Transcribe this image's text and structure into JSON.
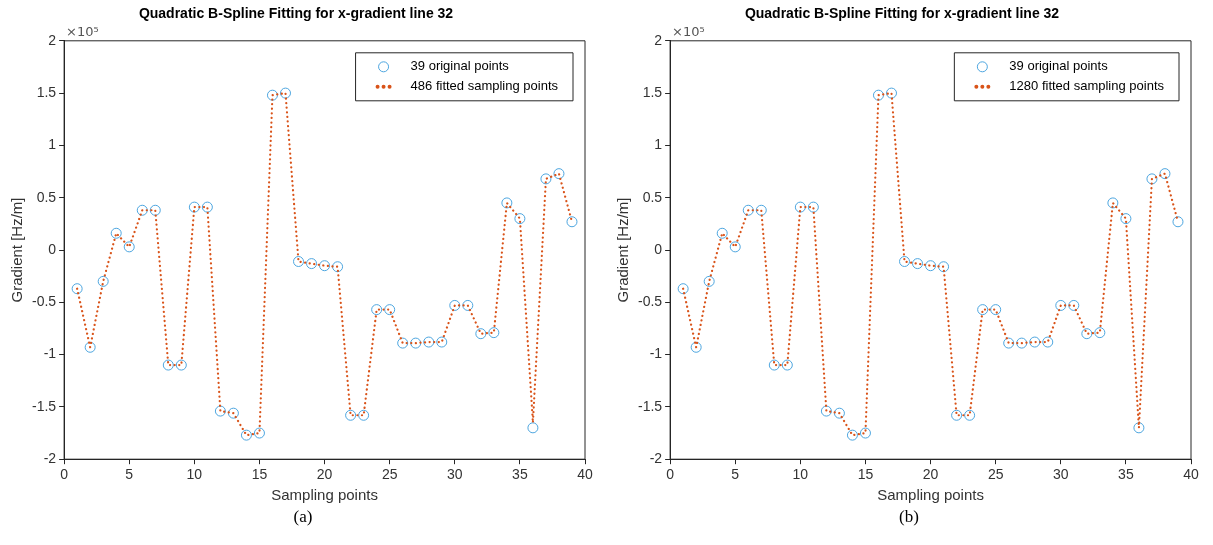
{
  "chart_data": [
    {
      "type": "scatter",
      "title": "Quadratic B-Spline Fitting for x-gradient line 32",
      "xlabel": "Sampling points",
      "ylabel": "Gradient [Hz/m]",
      "annotations": [
        "×10⁵",
        "(a)"
      ],
      "x": [
        1,
        2,
        3,
        4,
        5,
        6,
        7,
        8,
        9,
        10,
        11,
        12,
        13,
        14,
        15,
        16,
        17,
        18,
        19,
        20,
        21,
        22,
        23,
        24,
        25,
        26,
        27,
        28,
        29,
        30,
        31,
        32,
        33,
        34,
        35,
        36,
        37,
        38,
        39
      ],
      "series": [
        {
          "name": "39 original points",
          "type": "scatter",
          "marker": "circle",
          "color": "#4da6e0",
          "values": [
            -0.37,
            -0.93,
            -0.3,
            0.16,
            0.03,
            0.38,
            0.38,
            -1.1,
            -1.1,
            0.41,
            0.41,
            -1.54,
            -1.56,
            -1.77,
            -1.75,
            1.48,
            1.5,
            -0.11,
            -0.13,
            -0.15,
            -0.16,
            -1.58,
            -1.58,
            -0.57,
            -0.57,
            -0.89,
            -0.89,
            -0.88,
            -0.88,
            -0.53,
            -0.53,
            -0.8,
            -0.79,
            0.45,
            0.3,
            -1.7,
            0.68,
            0.73,
            0.27
          ]
        },
        {
          "name": "486 fitted sampling points",
          "type": "line",
          "marker": "none",
          "line_style": "dotted",
          "color": "#d95319",
          "values": [
            -0.37,
            -0.93,
            -0.3,
            0.16,
            0.03,
            0.38,
            0.38,
            -1.1,
            -1.1,
            0.41,
            0.41,
            -1.54,
            -1.56,
            -1.77,
            -1.75,
            1.48,
            1.5,
            -0.11,
            -0.13,
            -0.15,
            -0.16,
            -1.58,
            -1.58,
            -0.57,
            -0.57,
            -0.89,
            -0.89,
            -0.88,
            -0.88,
            -0.53,
            -0.53,
            -0.8,
            -0.79,
            0.45,
            0.3,
            -1.65,
            0.68,
            0.73,
            0.27
          ]
        }
      ],
      "xlim": [
        0,
        40
      ],
      "xticks": [
        0,
        5,
        10,
        15,
        20,
        25,
        30,
        35,
        40
      ],
      "ylim": [
        -2,
        2
      ],
      "yticks": [
        -2,
        -1.5,
        -1,
        -0.5,
        0,
        0.5,
        1,
        1.5,
        2
      ],
      "grid": false,
      "legend": "top right"
    },
    {
      "type": "scatter",
      "title": "Quadratic B-Spline Fitting for x-gradient line 32",
      "xlabel": "Sampling points",
      "ylabel": "Gradient [Hz/m]",
      "annotations": [
        "×10⁵",
        "(b)"
      ],
      "x": [
        1,
        2,
        3,
        4,
        5,
        6,
        7,
        8,
        9,
        10,
        11,
        12,
        13,
        14,
        15,
        16,
        17,
        18,
        19,
        20,
        21,
        22,
        23,
        24,
        25,
        26,
        27,
        28,
        29,
        30,
        31,
        32,
        33,
        34,
        35,
        36,
        37,
        38,
        39
      ],
      "series": [
        {
          "name": "39 original points",
          "type": "scatter",
          "marker": "circle",
          "color": "#4da6e0",
          "values": [
            -0.37,
            -0.93,
            -0.3,
            0.16,
            0.03,
            0.38,
            0.38,
            -1.1,
            -1.1,
            0.41,
            0.41,
            -1.54,
            -1.56,
            -1.77,
            -1.75,
            1.48,
            1.5,
            -0.11,
            -0.13,
            -0.15,
            -0.16,
            -1.58,
            -1.58,
            -0.57,
            -0.57,
            -0.89,
            -0.89,
            -0.88,
            -0.88,
            -0.53,
            -0.53,
            -0.8,
            -0.79,
            0.45,
            0.3,
            -1.7,
            0.68,
            0.73,
            0.27
          ]
        },
        {
          "name": "1280 fitted sampling points",
          "type": "line",
          "marker": "none",
          "line_style": "dotted",
          "color": "#d95319",
          "values": [
            -0.37,
            -0.93,
            -0.3,
            0.16,
            0.03,
            0.38,
            0.38,
            -1.1,
            -1.1,
            0.41,
            0.41,
            -1.54,
            -1.56,
            -1.77,
            -1.75,
            1.48,
            1.5,
            -0.11,
            -0.13,
            -0.15,
            -0.16,
            -1.58,
            -1.58,
            -0.57,
            -0.57,
            -0.89,
            -0.89,
            -0.88,
            -0.88,
            -0.53,
            -0.53,
            -0.8,
            -0.79,
            0.45,
            0.3,
            -1.7,
            0.68,
            0.73,
            0.27
          ]
        }
      ],
      "xlim": [
        0,
        40
      ],
      "xticks": [
        0,
        5,
        10,
        15,
        20,
        25,
        30,
        35,
        40
      ],
      "ylim": [
        -2,
        2
      ],
      "yticks": [
        -2,
        -1.5,
        -1,
        -0.5,
        0,
        0.5,
        1,
        1.5,
        2
      ],
      "grid": false,
      "legend": "top right"
    }
  ]
}
